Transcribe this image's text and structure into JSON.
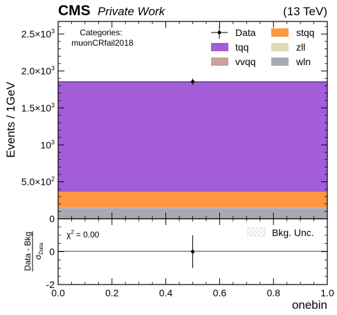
{
  "header": {
    "experiment": "CMS",
    "label": "Private Work",
    "energy": "(13 TeV)"
  },
  "categories_box": {
    "title": "Categories:",
    "name": "muonCRfail2018"
  },
  "chart_data": [
    {
      "type": "bar",
      "stacked": true,
      "x": [
        0.5
      ],
      "bin_edges": [
        0.0,
        1.0
      ],
      "ylabel": "Events / 1GeV",
      "ylim": [
        0,
        2670
      ],
      "y_ticks": [
        {
          "value": 500,
          "base": "5.0",
          "exp": "2"
        },
        {
          "value": 1000,
          "base": "10",
          "exp": "3"
        },
        {
          "value": 1500,
          "base": "1.5",
          "exp": "3"
        },
        {
          "value": 2000,
          "base": "2.0",
          "exp": "3"
        },
        {
          "value": 2500,
          "base": "2.5",
          "exp": "3"
        }
      ],
      "y_zero_label": "0",
      "series": [
        {
          "name": "wln",
          "values": [
            145
          ],
          "color": "#a9a9b3"
        },
        {
          "name": "zll",
          "values": [
            4
          ],
          "color": "#e0d9b8"
        },
        {
          "name": "vvqq",
          "values": [
            1
          ],
          "color": "#c9a39a"
        },
        {
          "name": "stqq",
          "values": [
            215
          ],
          "color": "#ff9640"
        },
        {
          "name": "tqq",
          "values": [
            1490
          ],
          "color": "#a35dd9"
        }
      ],
      "data_points": {
        "name": "Data",
        "x": [
          0.5
        ],
        "y": [
          1855
        ],
        "yerr": [
          43
        ]
      },
      "legend": {
        "placement": "top-right",
        "items": [
          {
            "name": "Data",
            "kind": "errorbar"
          },
          {
            "name": "stqq",
            "color": "#ff9640"
          },
          {
            "name": "tqq",
            "color": "#a35dd9"
          },
          {
            "name": "zll",
            "color": "#e0d9b8"
          },
          {
            "name": "vvqq",
            "color": "#c9a39a"
          },
          {
            "name": "wln",
            "color": "#a9a9b3"
          }
        ]
      }
    },
    {
      "type": "scatter",
      "xlabel": "onebin",
      "ylabel_num": "Data - Bkg",
      "ylabel_den_main": "σ",
      "ylabel_den_sub": "Data",
      "xlim": [
        0.0,
        1.0
      ],
      "ylim": [
        -2,
        2
      ],
      "x_ticks": [
        "0.0",
        "0.2",
        "0.4",
        "0.6",
        "0.8",
        "1.0"
      ],
      "y_ticks": [
        "-2",
        "0",
        "2"
      ],
      "points": [
        {
          "x": 0.5,
          "y": 0.0,
          "yerr": 1.0
        }
      ],
      "chi2_label": "χ",
      "chi2_power": "2",
      "chi2_value": "= 0.00",
      "legend": {
        "placement": "top-right",
        "items": [
          {
            "name": "Bkg. Unc.",
            "kind": "hatch"
          }
        ]
      }
    }
  ]
}
